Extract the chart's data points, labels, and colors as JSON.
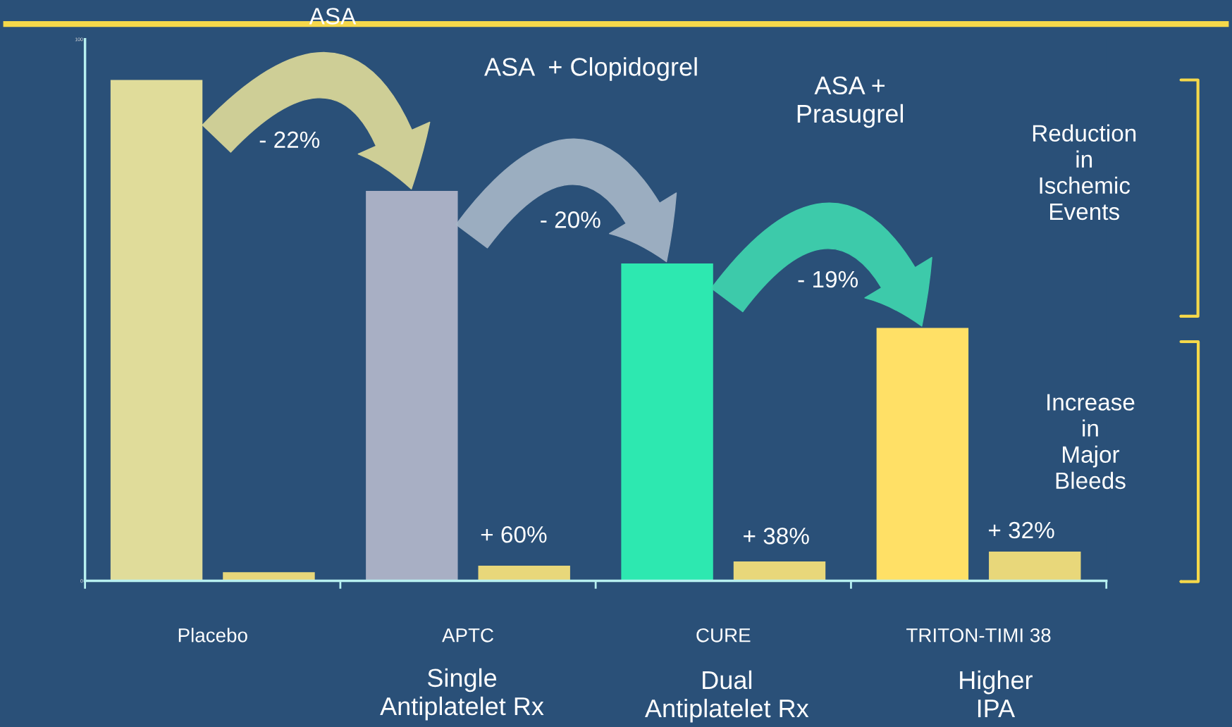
{
  "chart_data": {
    "type": "bar",
    "categories": [
      "Placebo",
      "APTC",
      "CURE",
      "TRITON-TIMI 38"
    ],
    "series": [
      {
        "colors": [
          "#e0dc9a",
          "#a8afc4",
          "#2de8b0",
          "#ffe066"
        ],
        "values": [
          92.5,
          72.0,
          58.6,
          46.7
        ]
      },
      {
        "color": "#e8d77a",
        "values": [
          1.6,
          2.8,
          3.6,
          5.4
        ]
      }
    ],
    "ylim": [
      0,
      100
    ],
    "yticks": [
      0,
      100
    ],
    "grid": false,
    "legend": false,
    "annotations": [
      "ASA",
      "ASA  + Clopidogrel",
      "ASA +\nPrasugrel",
      "- 22%",
      "- 20%",
      "- 19%",
      "+ 60%",
      "+ 38%",
      "+ 32%",
      "Reduction\nin\nIschemic\nEvents",
      "Increase\nin\nMajor\nBleeds",
      "Single\nAntiplatelet Rx",
      "Dual\nAntiplatelet Rx",
      "Higher\nIPA"
    ]
  }
}
